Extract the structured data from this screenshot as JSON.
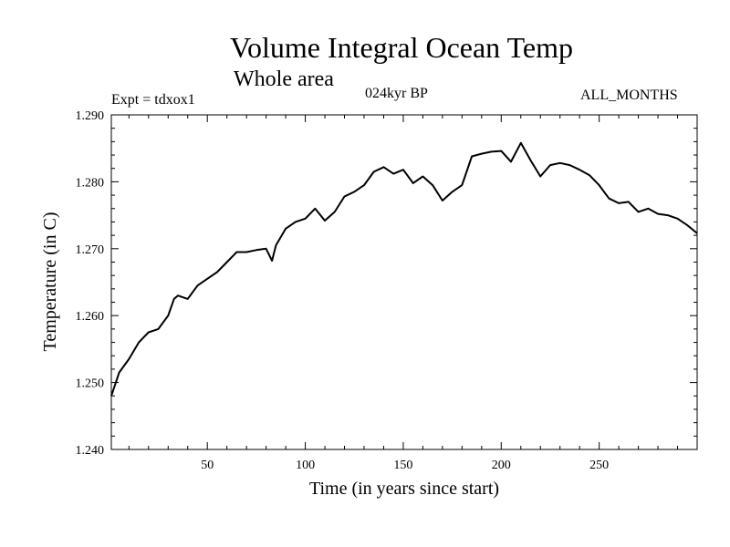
{
  "chart_data": {
    "type": "line",
    "title": "Volume Integral Ocean Temp",
    "subtitle": "Whole area",
    "annotations": {
      "experiment": "Expt = tdxox1",
      "period": "024kyr BP",
      "months": "ALL_MONTHS"
    },
    "xlabel": "Time (in years since start)",
    "ylabel": "Temperature (in C)",
    "xlim": [
      1,
      300
    ],
    "ylim": [
      1.24,
      1.29
    ],
    "x_ticks": [
      50,
      100,
      150,
      200,
      250
    ],
    "x_tick_labels": [
      "50",
      "100",
      "150",
      "200",
      "250"
    ],
    "y_ticks": [
      1.24,
      1.25,
      1.26,
      1.27,
      1.28,
      1.29
    ],
    "y_tick_labels": [
      "1.240",
      "1.250",
      "1.260",
      "1.270",
      "1.280",
      "1.290"
    ],
    "grid": false,
    "series": [
      {
        "name": "Volume Integral Ocean Temp",
        "x": [
          1,
          5,
          10,
          15,
          20,
          25,
          30,
          33,
          35,
          40,
          45,
          50,
          55,
          60,
          65,
          70,
          75,
          80,
          83,
          85,
          90,
          95,
          100,
          105,
          110,
          115,
          120,
          125,
          130,
          135,
          140,
          145,
          150,
          155,
          160,
          165,
          170,
          175,
          180,
          185,
          190,
          195,
          200,
          205,
          210,
          215,
          220,
          225,
          230,
          235,
          240,
          245,
          250,
          255,
          260,
          265,
          270,
          275,
          280,
          285,
          290,
          295,
          300
        ],
        "values": [
          1.248,
          1.2515,
          1.2535,
          1.256,
          1.2575,
          1.258,
          1.26,
          1.2625,
          1.263,
          1.2625,
          1.2645,
          1.2655,
          1.2665,
          1.268,
          1.2695,
          1.2695,
          1.2698,
          1.27,
          1.2682,
          1.2705,
          1.273,
          1.274,
          1.2745,
          1.276,
          1.2742,
          1.2755,
          1.2778,
          1.2785,
          1.2795,
          1.2815,
          1.2822,
          1.2812,
          1.2818,
          1.2798,
          1.2808,
          1.2795,
          1.2772,
          1.2785,
          1.2795,
          1.2838,
          1.2842,
          1.2845,
          1.2846,
          1.283,
          1.2858,
          1.2832,
          1.2808,
          1.2825,
          1.2828,
          1.2825,
          1.2818,
          1.281,
          1.2795,
          1.2775,
          1.2768,
          1.277,
          1.2755,
          1.276,
          1.2752,
          1.275,
          1.2745,
          1.2735,
          1.2723
        ]
      }
    ]
  }
}
